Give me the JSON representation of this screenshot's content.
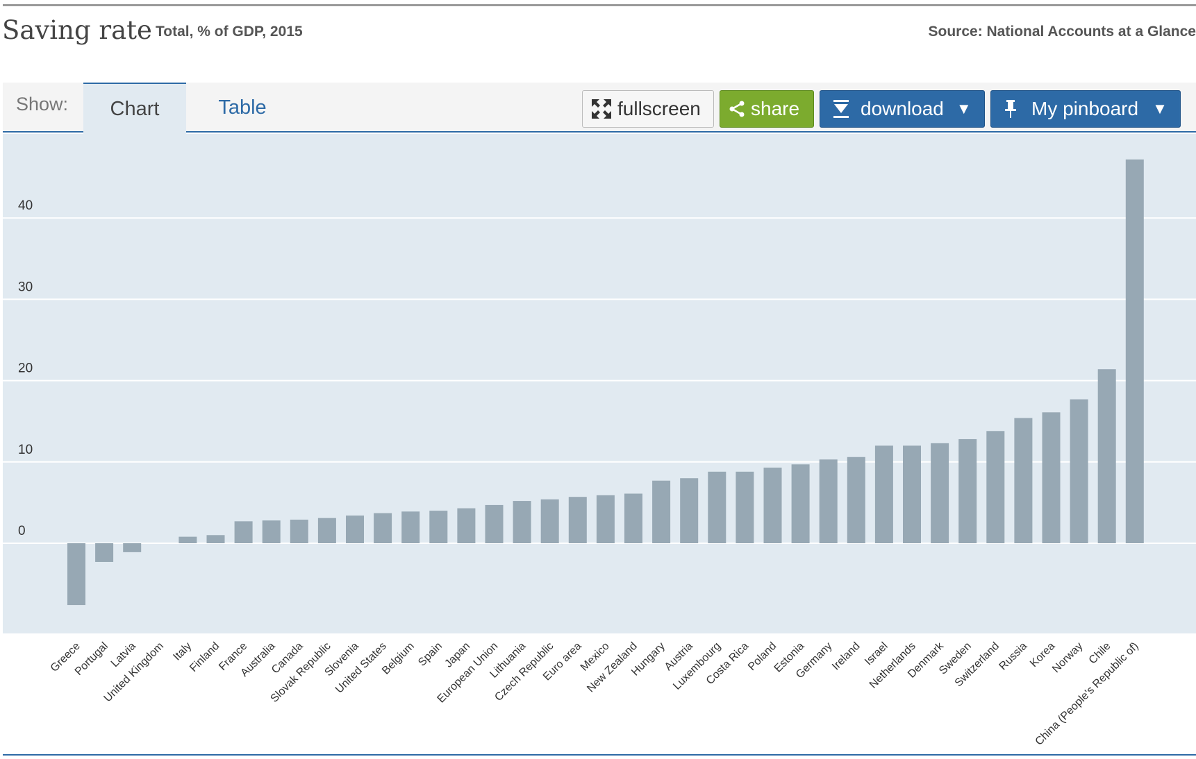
{
  "header": {
    "title": "Saving rate",
    "subtitle": "Total, % of GDP, 2015",
    "source": "Source: National Accounts at a Glance"
  },
  "toolbar": {
    "show_label": "Show:",
    "tabs": [
      {
        "label": "Chart",
        "active": true
      },
      {
        "label": "Table",
        "active": false
      }
    ],
    "fullscreen_label": "fullscreen",
    "share_label": "share",
    "download_label": "download",
    "pinboard_label": "My pinboard",
    "dropdown_arrow": "▼"
  },
  "colors": {
    "bar": "#97a8b4",
    "plot_background": "#e1eaf1",
    "accent": "#2d6aa6",
    "share_green": "#7cab2e"
  },
  "icons": {
    "fullscreen": "fullscreen-arrows-icon",
    "share": "share-icon",
    "download": "download-icon",
    "pinboard": "pin-icon"
  },
  "chart_data": {
    "type": "bar",
    "title": "Saving rate",
    "subtitle": "Total, % of GDP, 2015",
    "xlabel": "",
    "ylabel": "",
    "ylim": [
      -11,
      50
    ],
    "yticks": [
      0,
      10,
      20,
      30,
      40
    ],
    "grid": true,
    "categories": [
      "Greece",
      "Portugal",
      "Latvia",
      "United Kingdom",
      "Italy",
      "Finland",
      "France",
      "Australia",
      "Canada",
      "Slovak Republic",
      "Slovenia",
      "United States",
      "Belgium",
      "Spain",
      "Japan",
      "European Union",
      "Lithuania",
      "Czech Republic",
      "Euro area",
      "Mexico",
      "New Zealand",
      "Hungary",
      "Austria",
      "Luxembourg",
      "Costa Rica",
      "Poland",
      "Estonia",
      "Germany",
      "Ireland",
      "Israel",
      "Netherlands",
      "Denmark",
      "Sweden",
      "Switzerland",
      "Russia",
      "Korea",
      "Norway",
      "Chile",
      "China (People's Republic of)"
    ],
    "values": [
      -7.6,
      -2.3,
      -1.1,
      0.0,
      0.8,
      1.0,
      2.7,
      2.8,
      2.9,
      3.1,
      3.4,
      3.7,
      3.9,
      4.0,
      4.3,
      4.7,
      5.2,
      5.4,
      5.7,
      5.9,
      6.1,
      7.7,
      8.0,
      8.8,
      8.8,
      9.3,
      9.7,
      10.3,
      10.6,
      12.0,
      12.0,
      12.3,
      12.8,
      13.8,
      15.4,
      16.1,
      17.7,
      21.4,
      47.2
    ]
  }
}
